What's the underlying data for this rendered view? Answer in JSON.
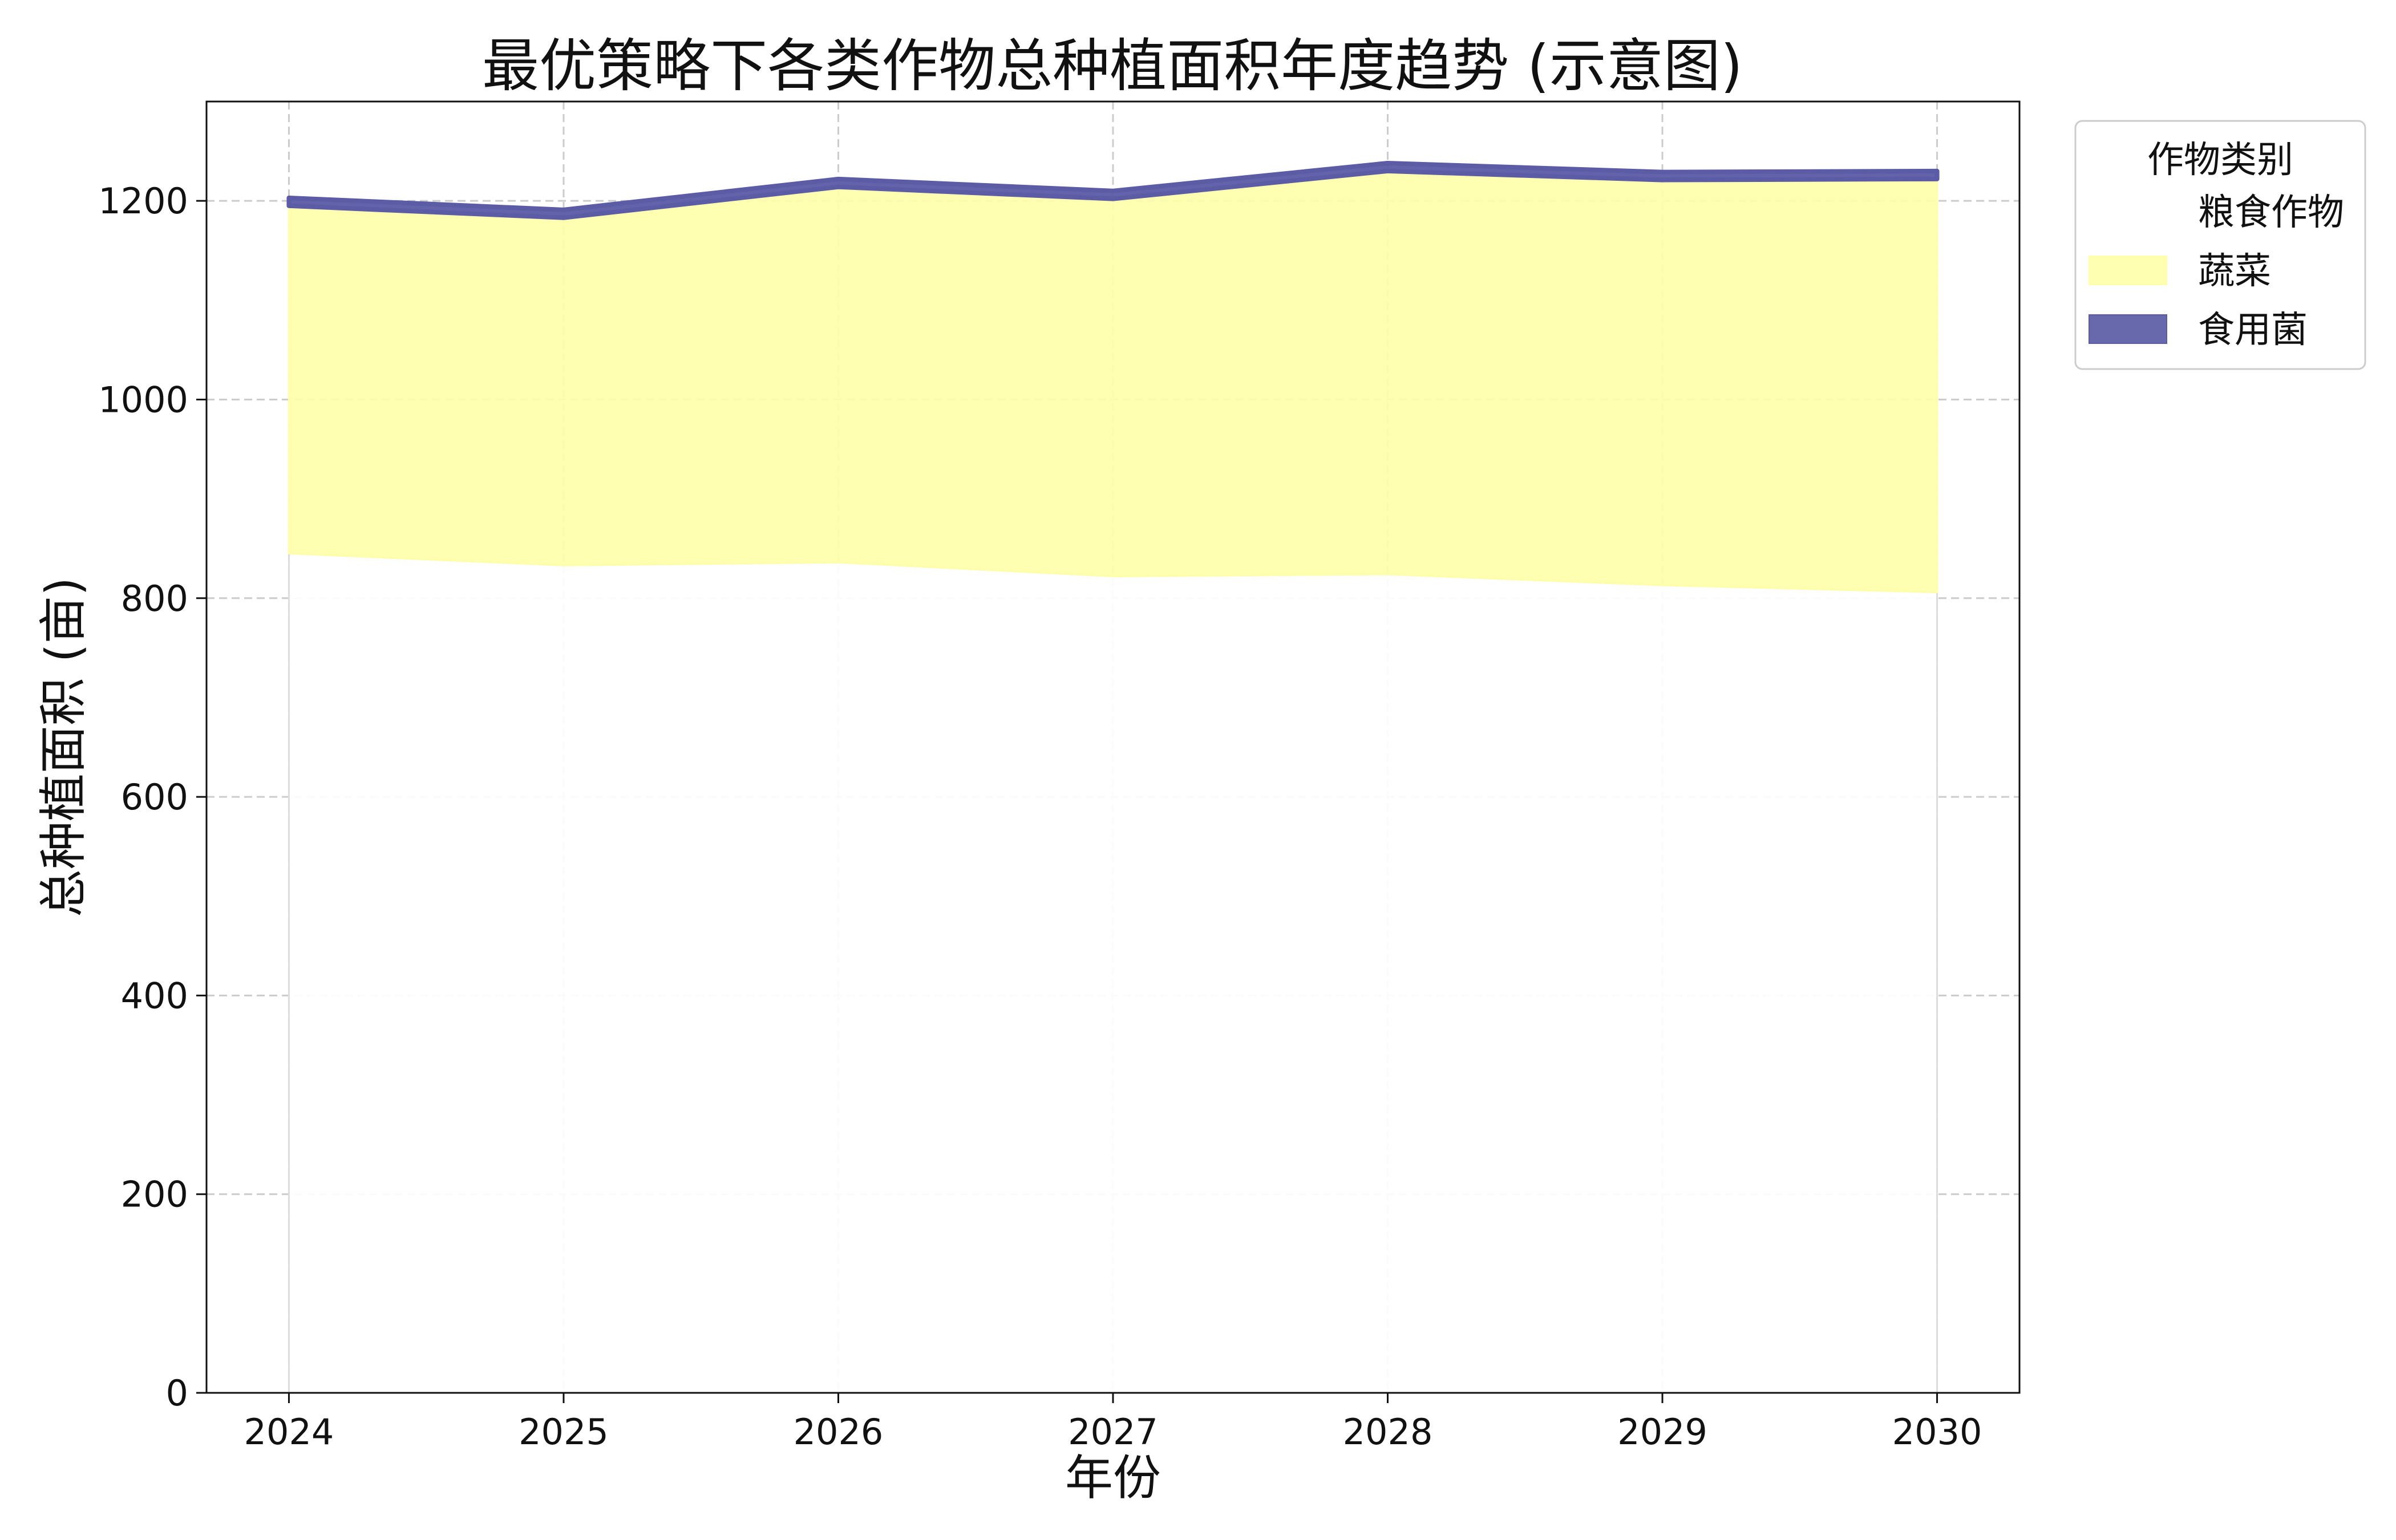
{
  "chart_data": {
    "type": "area",
    "stacked": true,
    "title": "最优策略下各类作物总种植面积年度趋势 (示意图)",
    "xlabel": "年份",
    "ylabel": "总种植面积 (亩)",
    "x": [
      2024,
      2025,
      2026,
      2027,
      2028,
      2029,
      2030
    ],
    "x_tick_labels": [
      "2024",
      "2025",
      "2026",
      "2027",
      "2028",
      "2029",
      "2030"
    ],
    "ylim": [
      0,
      1300
    ],
    "xlim": [
      2023.7,
      2030.3
    ],
    "y_ticks": [
      0,
      200,
      400,
      600,
      800,
      1000,
      1200
    ],
    "y_tick_labels": [
      "0",
      "200",
      "400",
      "600",
      "800",
      "1000",
      "1200"
    ],
    "grid": true,
    "legend": {
      "title": "作物类别",
      "placement": "outside-top-right"
    },
    "series": [
      {
        "name": "粮食作物",
        "color": "#ffffff",
        "values": [
          845,
          833,
          836,
          822,
          824,
          813,
          806
        ]
      },
      {
        "name": "蔬菜",
        "color": "#ffffaa",
        "values": [
          350,
          350,
          378,
          380,
          406,
          408,
          416
        ]
      },
      {
        "name": "食用菌",
        "color": "#5b5ba6",
        "values": [
          8,
          8,
          8,
          8,
          8,
          8,
          8
        ]
      }
    ]
  }
}
